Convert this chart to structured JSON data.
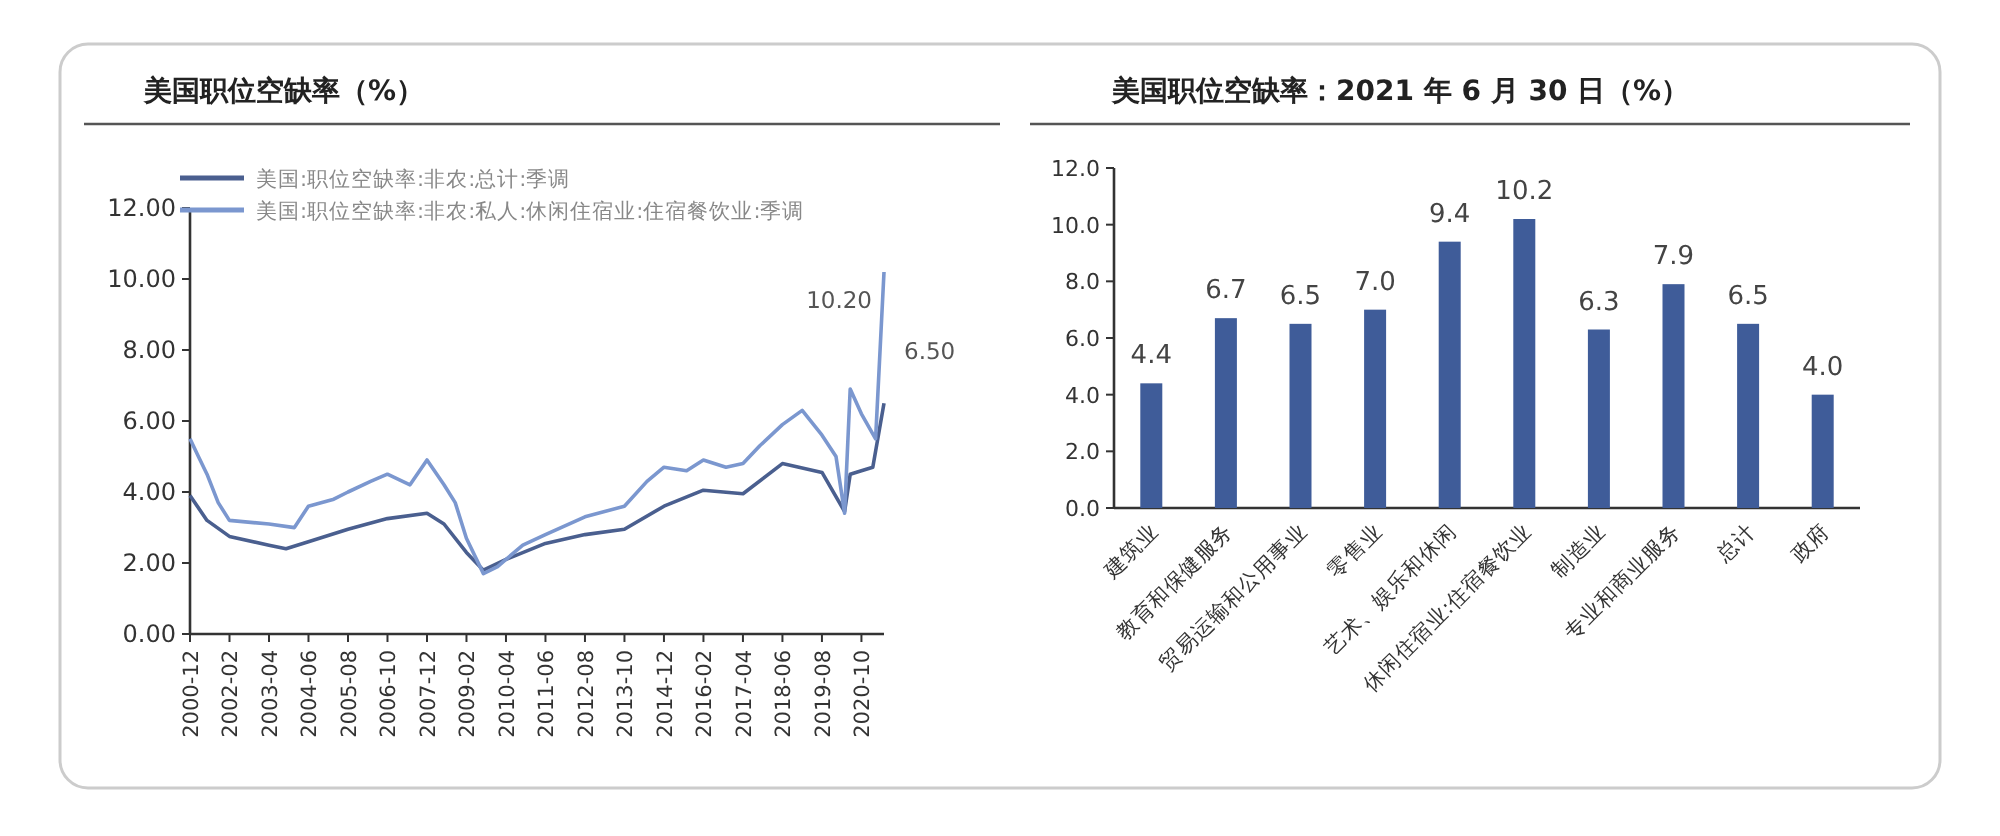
{
  "chart_data": [
    {
      "type": "line",
      "title": "美国职位空缺率（%）",
      "legend": "top left",
      "grid": false,
      "x": [
        "2000-12",
        "2001-06",
        "2002-02",
        "2003-04",
        "2003-10",
        "2004-06",
        "2005-08",
        "2006-10",
        "2007-12",
        "2008-06",
        "2009-02",
        "2009-08",
        "2010-04",
        "2011-06",
        "2012-08",
        "2013-10",
        "2014-12",
        "2016-02",
        "2017-04",
        "2018-06",
        "2019-08",
        "2020-04",
        "2020-06",
        "2020-10",
        "2021-02",
        "2021-06"
      ],
      "series": [
        {
          "name": "美国:职位空缺率:非农:总计:季调",
          "color": "#4a5f8f",
          "values": [
            3.9,
            3.2,
            2.75,
            2.5,
            2.4,
            2.6,
            2.95,
            3.25,
            3.4,
            3.1,
            2.3,
            1.8,
            2.1,
            2.55,
            2.8,
            2.95,
            3.6,
            4.05,
            3.95,
            4.8,
            4.55,
            3.45,
            4.5,
            4.6,
            4.7,
            6.5
          ]
        },
        {
          "name": "美国:职位空缺率:非农:私人:休闲住宿业:住宿餐饮业:季调",
          "color": "#7b97cf",
          "x": [
            "2000-12",
            "2001-03",
            "2001-06",
            "2001-10",
            "2002-02",
            "2003-04",
            "2004-01",
            "2004-06",
            "2005-03",
            "2005-08",
            "2006-04",
            "2006-10",
            "2007-06",
            "2007-12",
            "2008-06",
            "2008-10",
            "2009-02",
            "2009-08",
            "2010-01",
            "2010-04",
            "2010-10",
            "2011-06",
            "2012-08",
            "2013-10",
            "2014-06",
            "2014-12",
            "2015-08",
            "2016-02",
            "2016-10",
            "2017-04",
            "2017-10",
            "2018-06",
            "2019-01",
            "2019-08",
            "2020-01",
            "2020-04",
            "2020-06",
            "2020-10",
            "2021-03",
            "2021-06"
          ],
          "values": [
            5.5,
            5.0,
            4.5,
            3.7,
            3.2,
            3.1,
            3.0,
            3.6,
            3.8,
            4.0,
            4.3,
            4.5,
            4.2,
            4.9,
            4.2,
            3.7,
            2.7,
            1.7,
            1.9,
            2.1,
            2.5,
            2.8,
            3.3,
            3.6,
            4.3,
            4.7,
            4.6,
            4.9,
            4.7,
            4.8,
            5.3,
            5.9,
            6.3,
            5.6,
            5.0,
            3.4,
            6.9,
            6.2,
            5.5,
            10.2
          ]
        }
      ],
      "xlim": [
        "2000-12",
        "2021-06"
      ],
      "xticks": [
        "2000-12",
        "2002-02",
        "2003-04",
        "2004-06",
        "2005-08",
        "2006-10",
        "2007-12",
        "2009-02",
        "2010-04",
        "2011-06",
        "2012-08",
        "2013-10",
        "2014-12",
        "2016-02",
        "2017-04",
        "2018-06",
        "2019-08",
        "2020-10"
      ],
      "ylim": [
        0,
        12
      ],
      "yticks": [
        {
          "value": 0,
          "label": "0.00"
        },
        {
          "value": 2,
          "label": "2.00"
        },
        {
          "value": 4,
          "label": "4.00"
        },
        {
          "value": 6,
          "label": "6.00"
        },
        {
          "value": 8,
          "label": "8.00"
        },
        {
          "value": 10,
          "label": "10.00"
        },
        {
          "value": 12,
          "label": "12.00"
        }
      ],
      "annotations": [
        {
          "text": "10.20",
          "x": "2021-06",
          "y": 10.2
        },
        {
          "text": "6.50",
          "x": "2021-06",
          "y": 6.5
        }
      ]
    },
    {
      "type": "bar",
      "title": "美国职位空缺率：2021 年 6 月 30 日（%）",
      "grid": false,
      "categories": [
        "建筑业",
        "教育和保健服务",
        "贸易运输和公用事业",
        "零售业",
        "艺术、娱乐和休闲",
        "休闲住宿业:住宿餐饮业",
        "制造业",
        "专业和商业服务",
        "总计",
        "政府"
      ],
      "values": [
        4.4,
        6.7,
        6.5,
        7.0,
        9.4,
        10.2,
        6.3,
        7.9,
        6.5,
        4.0
      ],
      "value_labels": [
        "4.4",
        "6.7",
        "6.5",
        "7.0",
        "9.4",
        "10.2",
        "6.3",
        "7.9",
        "6.5",
        "4.0"
      ],
      "color": "#3f5c99",
      "ylim": [
        0,
        12
      ],
      "yticks": [
        {
          "value": 0,
          "label": "0.0"
        },
        {
          "value": 2,
          "label": "2.0"
        },
        {
          "value": 4,
          "label": "4.0"
        },
        {
          "value": 6,
          "label": "6.0"
        },
        {
          "value": 8,
          "label": "8.0"
        },
        {
          "value": 10,
          "label": "10.0"
        },
        {
          "value": 12,
          "label": "12.0"
        }
      ]
    }
  ]
}
